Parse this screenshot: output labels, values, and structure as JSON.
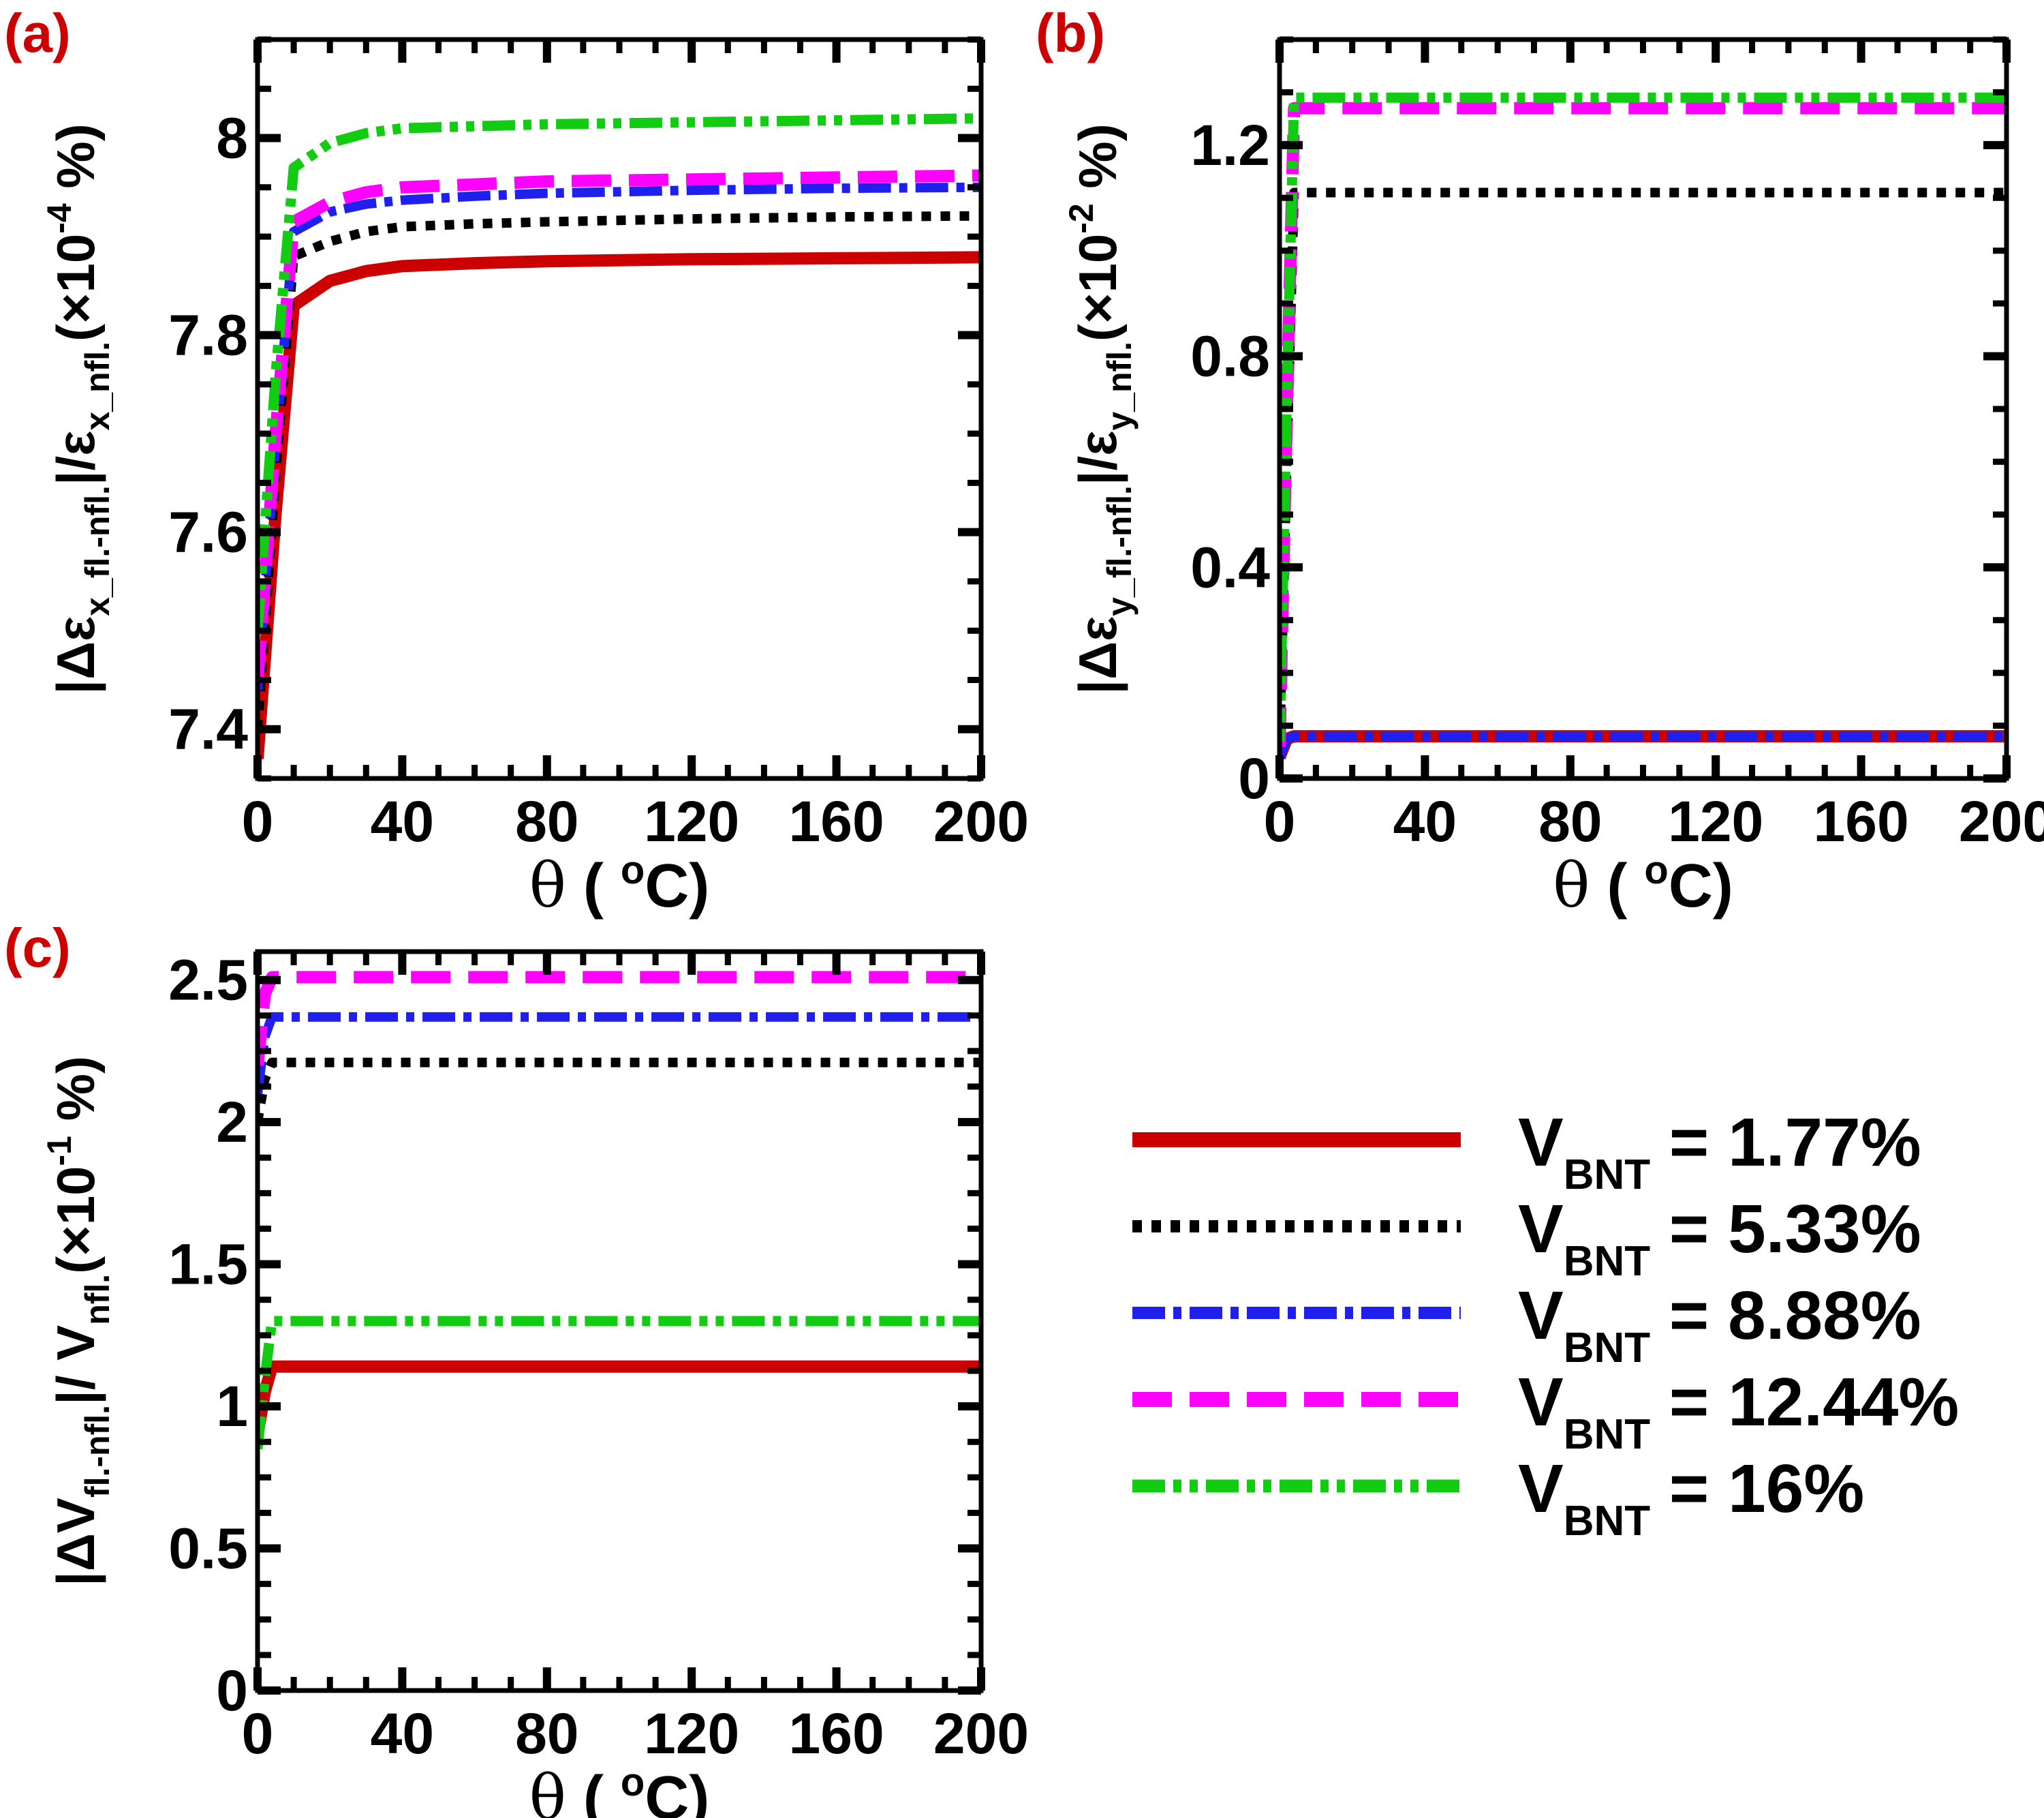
{
  "chart_data": [
    {
      "id": "a",
      "panel_label": "(a)",
      "type": "line",
      "xlabel": {
        "main": "θ",
        "open": " ( ",
        "sup": "o",
        "unit": "C",
        "close": ")"
      },
      "ylabel": {
        "a": "|Δε",
        "sub1": "x_fl.-nfl.",
        "b": "|/ε",
        "sub2": "x_nfl.",
        "c": "(×10",
        "sup": "-4",
        "d": " %)"
      },
      "xlim": [
        0,
        200
      ],
      "ylim": [
        7.35,
        8.1
      ],
      "xticks": [
        0,
        40,
        80,
        120,
        160,
        200
      ],
      "yticks": [
        7.4,
        7.6,
        7.8,
        8
      ],
      "ytick_labels": [
        "7.4",
        "7.6",
        "7.8",
        "8"
      ],
      "x": [
        0,
        5,
        10,
        20,
        30,
        40,
        60,
        80,
        120,
        160,
        200
      ],
      "series": [
        {
          "name": "V_BNT = 1.77%",
          "values": [
            7.37,
            7.62,
            7.83,
            7.855,
            7.865,
            7.87,
            7.873,
            7.875,
            7.877,
            7.878,
            7.879
          ]
        },
        {
          "name": "V_BNT = 5.33%",
          "values": [
            7.4,
            7.66,
            7.88,
            7.895,
            7.905,
            7.91,
            7.913,
            7.915,
            7.918,
            7.92,
            7.921
          ]
        },
        {
          "name": "V_BNT = 8.88%",
          "values": [
            7.44,
            7.69,
            7.905,
            7.925,
            7.933,
            7.937,
            7.941,
            7.944,
            7.947,
            7.949,
            7.95
          ]
        },
        {
          "name": "V_BNT = 12.44%",
          "values": [
            7.45,
            7.7,
            7.915,
            7.935,
            7.945,
            7.95,
            7.953,
            7.956,
            7.958,
            7.96,
            7.962
          ]
        },
        {
          "name": "V_BNT = 16%",
          "values": [
            7.5,
            7.76,
            7.97,
            7.995,
            8.005,
            8.01,
            8.012,
            8.014,
            8.016,
            8.018,
            8.02
          ]
        }
      ]
    },
    {
      "id": "b",
      "panel_label": "(b)",
      "type": "line",
      "xlabel": {
        "main": "θ",
        "open": " ( ",
        "sup": "o",
        "unit": "C",
        "close": ")"
      },
      "ylabel": {
        "a": "|Δε",
        "sub1": "y_fl.-nfl.",
        "b": "|/ε",
        "sub2": "y_nfl.",
        "c": "(×10",
        "sup": "-2",
        "d": " %)"
      },
      "xlim": [
        0,
        200
      ],
      "ylim": [
        0,
        1.4
      ],
      "xticks": [
        0,
        40,
        80,
        120,
        160,
        200
      ],
      "yticks": [
        0,
        0.4,
        0.8,
        1.2
      ],
      "ytick_labels": [
        "0",
        "0.4",
        "0.8",
        "1.2"
      ],
      "x": [
        0,
        2,
        4,
        10,
        200
      ],
      "series": [
        {
          "name": "V_BNT = 1.77%",
          "values": [
            0.04,
            0.075,
            0.08,
            0.08,
            0.08
          ]
        },
        {
          "name": "V_BNT = 5.33%",
          "values": [
            0.05,
            0.6,
            1.11,
            1.11,
            1.11
          ]
        },
        {
          "name": "V_BNT = 8.88%",
          "values": [
            0.04,
            0.075,
            0.08,
            0.08,
            0.08
          ]
        },
        {
          "name": "V_BNT = 12.44%",
          "values": [
            0.06,
            0.7,
            1.27,
            1.27,
            1.27
          ]
        },
        {
          "name": "V_BNT = 16%",
          "values": [
            0.07,
            0.72,
            1.29,
            1.29,
            1.29
          ]
        }
      ]
    },
    {
      "id": "c",
      "panel_label": "(c)",
      "type": "line",
      "xlabel": {
        "main": "θ",
        "open": " ( ",
        "sup": "o",
        "unit": "C",
        "close": ")"
      },
      "ylabel": {
        "a": "|ΔV",
        "sub1": "fl.-nfl.",
        "b": "|/ V",
        "sub2": "nfl.",
        "c": "(×10",
        "sup": "-1",
        "d": " %)"
      },
      "xlim": [
        0,
        200
      ],
      "ylim": [
        0,
        2.6
      ],
      "xticks": [
        0,
        40,
        80,
        120,
        160,
        200
      ],
      "yticks": [
        0,
        0.5,
        1,
        1.5,
        2,
        2.5
      ],
      "ytick_labels": [
        "0",
        "0.5",
        "1",
        "1.5",
        "2",
        "2.5"
      ],
      "x": [
        0,
        2,
        4,
        200
      ],
      "series": [
        {
          "name": "V_BNT = 1.77%",
          "values": [
            0.9,
            1.05,
            1.14,
            1.14
          ]
        },
        {
          "name": "V_BNT = 5.33%",
          "values": [
            2.0,
            2.15,
            2.21,
            2.21
          ]
        },
        {
          "name": "V_BNT = 8.88%",
          "values": [
            2.1,
            2.3,
            2.37,
            2.37
          ]
        },
        {
          "name": "V_BNT = 12.44%",
          "values": [
            2.2,
            2.45,
            2.51,
            2.51
          ]
        },
        {
          "name": "V_BNT = 16%",
          "values": [
            0.85,
            1.1,
            1.3,
            1.3
          ]
        }
      ]
    }
  ],
  "legend": {
    "position": "bottom-right",
    "entries": [
      {
        "pre": "V",
        "sub": "BNT",
        "post": " = 1.77%",
        "color": "#cc0000",
        "style": "solid"
      },
      {
        "pre": "V",
        "sub": "BNT",
        "post": " = 5.33%",
        "color": "#000000",
        "style": "dotted"
      },
      {
        "pre": "V",
        "sub": "BNT",
        "post": " = 8.88%",
        "color": "#2020ee",
        "style": "dash-dot"
      },
      {
        "pre": "V",
        "sub": "BNT",
        "post": " = 12.44%",
        "color": "#ff00ff",
        "style": "dashed"
      },
      {
        "pre": "V",
        "sub": "BNT",
        "post": " = 16%",
        "color": "#11cc11",
        "style": "dash-dot-dot"
      }
    ]
  },
  "colors": {
    "panel_label": "#cc0000",
    "axis": "#000000"
  }
}
